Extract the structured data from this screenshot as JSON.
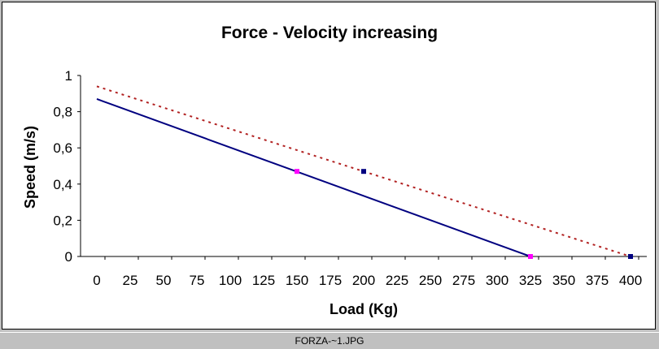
{
  "chart_data": {
    "type": "scatter",
    "title": "Force - Velocity increasing",
    "xlabel": "Load (Kg)",
    "ylabel": "Speed (m/s)",
    "xlim": [
      0,
      400
    ],
    "ylim": [
      0,
      1
    ],
    "x_ticks": [
      "0",
      "25",
      "50",
      "75",
      "100",
      "125",
      "150",
      "175",
      "200",
      "225",
      "250",
      "275",
      "300",
      "325",
      "350",
      "375",
      "400"
    ],
    "y_ticks": [
      "0",
      "0,2",
      "0,4",
      "0,6",
      "0,8",
      "1"
    ],
    "grid": false,
    "legend": "none",
    "series": [
      {
        "points": [
          [
            150,
            0.47
          ],
          [
            325,
            0
          ]
        ],
        "trend": [
          [
            0,
            0.87
          ],
          [
            325,
            0
          ]
        ],
        "trend_style": "solid",
        "color": "#000080",
        "marker_color": "#ff00ff"
      },
      {
        "points": [
          [
            200,
            0.47
          ],
          [
            400,
            0
          ]
        ],
        "trend": [
          [
            0,
            0.94
          ],
          [
            400,
            0
          ]
        ],
        "trend_style": "dotted",
        "color": "#b22222",
        "marker_color": "#000080"
      }
    ]
  },
  "status": {
    "filename": "FORZA-~1.JPG"
  },
  "colors": {
    "window_bg": "#c0c0c0",
    "plot_bg": "#ffffff"
  }
}
